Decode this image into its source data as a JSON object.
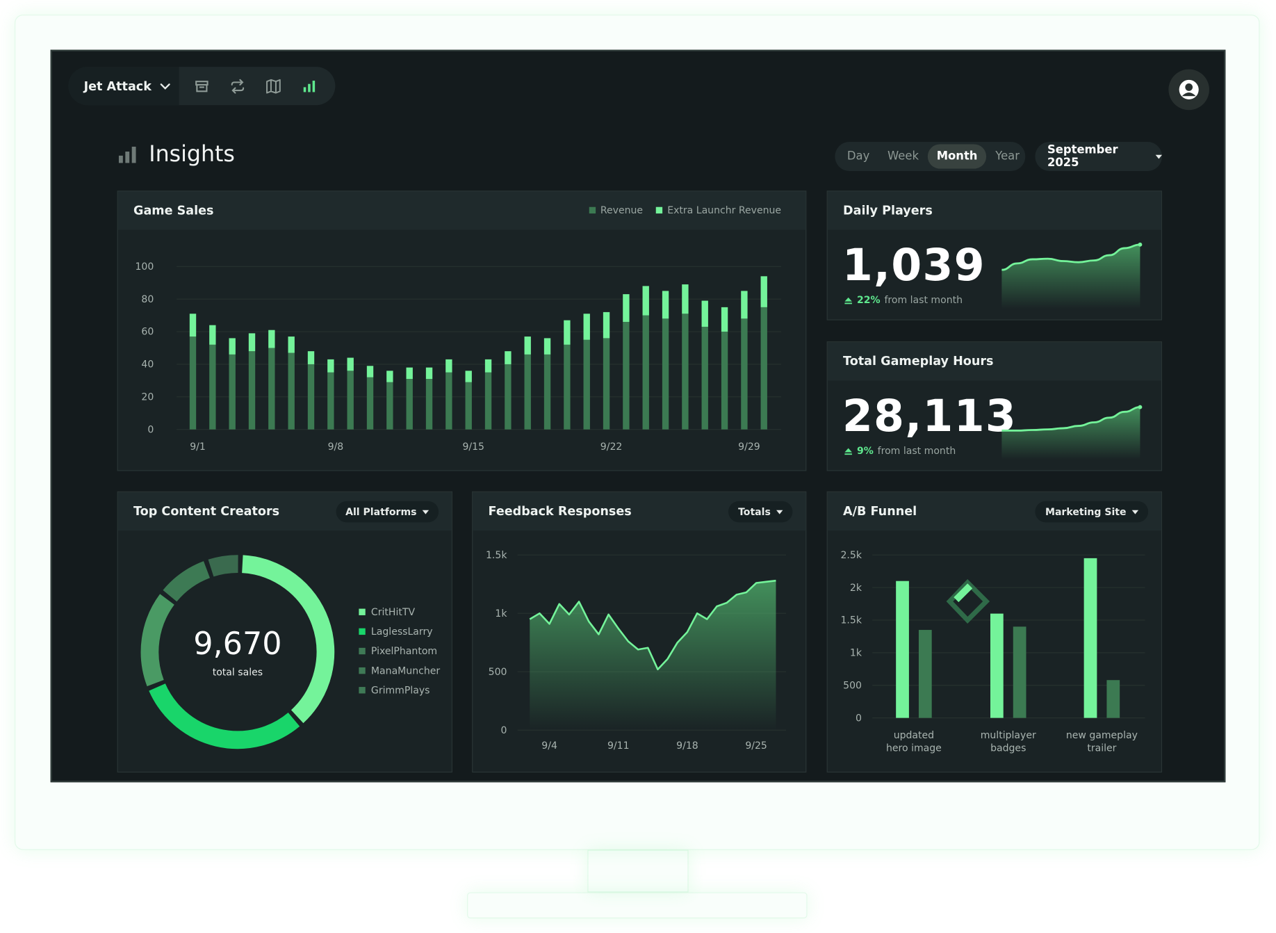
{
  "header": {
    "game_title": "Jet Attack",
    "icons": [
      "store-icon",
      "repeat-icon",
      "map-icon",
      "bar-chart-icon"
    ],
    "avatar_icon": "user-circle-icon"
  },
  "page": {
    "title": "Insights",
    "title_icon": "bar-chart-icon"
  },
  "period_tabs": [
    {
      "label": "Day",
      "active": false
    },
    {
      "label": "Week",
      "active": false
    },
    {
      "label": "Month",
      "active": true
    },
    {
      "label": "Year",
      "active": false
    }
  ],
  "month_select": "September 2025",
  "colors": {
    "accent": "#74f39a",
    "dark_green": "#3c7a52",
    "mid_green": "#4aa365",
    "bright_green": "#19d56a",
    "background": "#141b1d",
    "card": "#1a2325"
  },
  "game_sales": {
    "title": "Game Sales",
    "legend": {
      "revenue": "Revenue",
      "extra": "Extra Launchr Revenue"
    }
  },
  "daily_players": {
    "title": "Daily Players",
    "value": "1,039",
    "delta_pct": "22%",
    "delta_text": "from last month"
  },
  "gameplay_hours": {
    "title": "Total Gameplay Hours",
    "value": "28,113",
    "delta_pct": "9%",
    "delta_text": "from last month"
  },
  "creators": {
    "title": "Top Content Creators",
    "filter": "All Platforms",
    "total": "9,670",
    "total_label": "total sales"
  },
  "feedback": {
    "title": "Feedback Responses",
    "filter": "Totals"
  },
  "funnel": {
    "title": "A/B Funnel",
    "filter": "Marketing Site"
  },
  "chart_data": [
    {
      "type": "bar",
      "id": "game_sales",
      "title": "Game Sales",
      "stacked": true,
      "categories": [
        "9/1",
        "9/2",
        "9/3",
        "9/4",
        "9/5",
        "9/6",
        "9/7",
        "9/8",
        "9/9",
        "9/10",
        "9/11",
        "9/12",
        "9/13",
        "9/14",
        "9/15",
        "9/16",
        "9/17",
        "9/18",
        "9/19",
        "9/20",
        "9/21",
        "9/22",
        "9/23",
        "9/24",
        "9/25",
        "9/26",
        "9/27",
        "9/28",
        "9/29",
        "9/30"
      ],
      "tick_labels": [
        "9/1",
        "9/8",
        "9/15",
        "9/22",
        "9/29"
      ],
      "series": [
        {
          "name": "Revenue",
          "values": [
            57,
            52,
            46,
            48,
            50,
            47,
            40,
            35,
            36,
            32,
            29,
            31,
            31,
            35,
            29,
            35,
            40,
            46,
            46,
            52,
            55,
            56,
            66,
            70,
            68,
            71,
            63,
            60,
            68,
            75
          ]
        },
        {
          "name": "Extra Launchr Revenue",
          "values": [
            14,
            12,
            10,
            11,
            11,
            10,
            8,
            8,
            8,
            7,
            7,
            7,
            7,
            8,
            7,
            8,
            8,
            11,
            10,
            15,
            16,
            16,
            17,
            18,
            17,
            18,
            16,
            15,
            17,
            19
          ]
        }
      ],
      "yticks": [
        0,
        20,
        40,
        60,
        80,
        100
      ],
      "ylim": [
        0,
        100
      ],
      "grid": true,
      "legend_position": "top-right"
    },
    {
      "type": "area",
      "id": "daily_players",
      "values": [
        47,
        58,
        65,
        66,
        62,
        60,
        63,
        72,
        84,
        90
      ]
    },
    {
      "type": "area",
      "id": "gameplay_hours",
      "values": [
        30,
        30,
        31,
        32,
        34,
        38,
        44,
        52,
        62,
        70
      ]
    },
    {
      "type": "pie",
      "id": "top_creators",
      "donut": true,
      "legend_position": "right",
      "labels": [
        "CritHitTV",
        "LaglessLarry",
        "PixelPhantom",
        "ManaMuncher",
        "GrimmPlays"
      ],
      "values": [
        3680,
        2930,
        1620,
        880,
        560
      ]
    },
    {
      "type": "area",
      "id": "feedback",
      "x_ticks": [
        "9/4",
        "9/11",
        "9/18",
        "9/25"
      ],
      "yticks": [
        "0",
        "500",
        "1k",
        "1.5k"
      ],
      "ylim": [
        0,
        1500
      ],
      "x": [
        "9/2",
        "9/3",
        "9/4",
        "9/5",
        "9/6",
        "9/7",
        "9/8",
        "9/9",
        "9/10",
        "9/11",
        "9/12",
        "9/13",
        "9/14",
        "9/15",
        "9/16",
        "9/17",
        "9/18",
        "9/19",
        "9/20",
        "9/21",
        "9/22",
        "9/23",
        "9/24",
        "9/25",
        "9/26",
        "9/27"
      ],
      "values": [
        950,
        1000,
        910,
        1080,
        990,
        1100,
        930,
        820,
        990,
        870,
        760,
        690,
        705,
        520,
        610,
        750,
        840,
        1000,
        950,
        1060,
        1090,
        1160,
        1180,
        1260,
        1270,
        1280
      ]
    },
    {
      "type": "bar",
      "id": "ab_funnel",
      "categories": [
        "updated hero image",
        "multiplayer badges",
        "new gameplay trailer"
      ],
      "category_lines": [
        [
          "updated",
          "hero image"
        ],
        [
          "multiplayer",
          "badges"
        ],
        [
          "new gameplay",
          "trailer"
        ]
      ],
      "series": [
        {
          "values": [
            2100,
            1600,
            2450
          ]
        },
        {
          "values": [
            1350,
            1400,
            580
          ]
        }
      ],
      "yticks": [
        "0",
        "500",
        "1k",
        "1.5k",
        "2k",
        "2.5k"
      ],
      "ylim": [
        0,
        2500
      ]
    }
  ]
}
